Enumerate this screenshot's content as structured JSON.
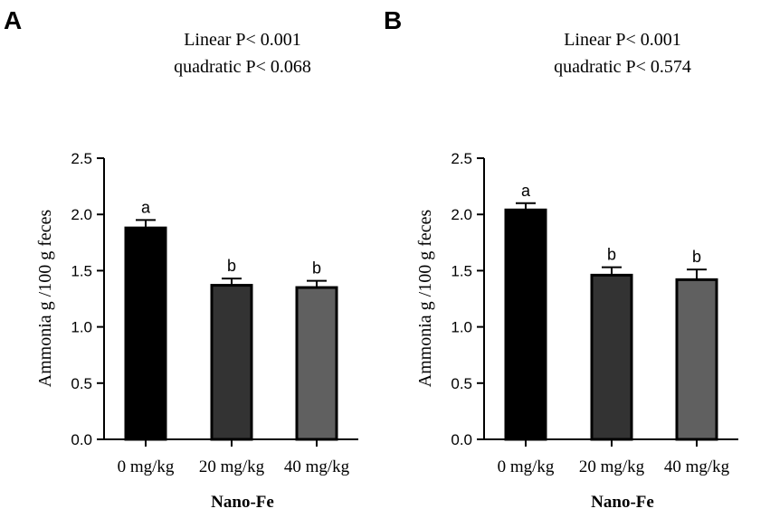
{
  "chart_data": [
    {
      "type": "bar",
      "panel": "A",
      "stats": [
        "Linear P< 0.001",
        "quadratic P< 0.068"
      ],
      "categories": [
        "0 mg/kg",
        "20 mg/kg",
        "40 mg/kg"
      ],
      "values": [
        1.88,
        1.37,
        1.35
      ],
      "errors": [
        0.07,
        0.06,
        0.06
      ],
      "significance": [
        "a",
        "b",
        "b"
      ],
      "colors": [
        "#000000",
        "#333333",
        "#606060"
      ],
      "xlabel": "Nano-Fe",
      "ylabel": "Ammonia g /100 g feces",
      "ylim": [
        0,
        2.5
      ],
      "yticks": [
        "0.0",
        "0.5",
        "1.0",
        "1.5",
        "2.0",
        "2.5"
      ]
    },
    {
      "type": "bar",
      "panel": "B",
      "stats": [
        "Linear P< 0.001",
        "quadratic P< 0.574"
      ],
      "categories": [
        "0 mg/kg",
        "20 mg/kg",
        "40 mg/kg"
      ],
      "values": [
        2.04,
        1.46,
        1.42
      ],
      "errors": [
        0.06,
        0.07,
        0.09
      ],
      "significance": [
        "a",
        "b",
        "b"
      ],
      "colors": [
        "#000000",
        "#333333",
        "#606060"
      ],
      "xlabel": "Nano-Fe",
      "ylabel": "Ammonia g /100 g feces",
      "ylim": [
        0,
        2.5
      ],
      "yticks": [
        "0.0",
        "0.5",
        "1.0",
        "1.5",
        "2.0",
        "2.5"
      ]
    }
  ]
}
